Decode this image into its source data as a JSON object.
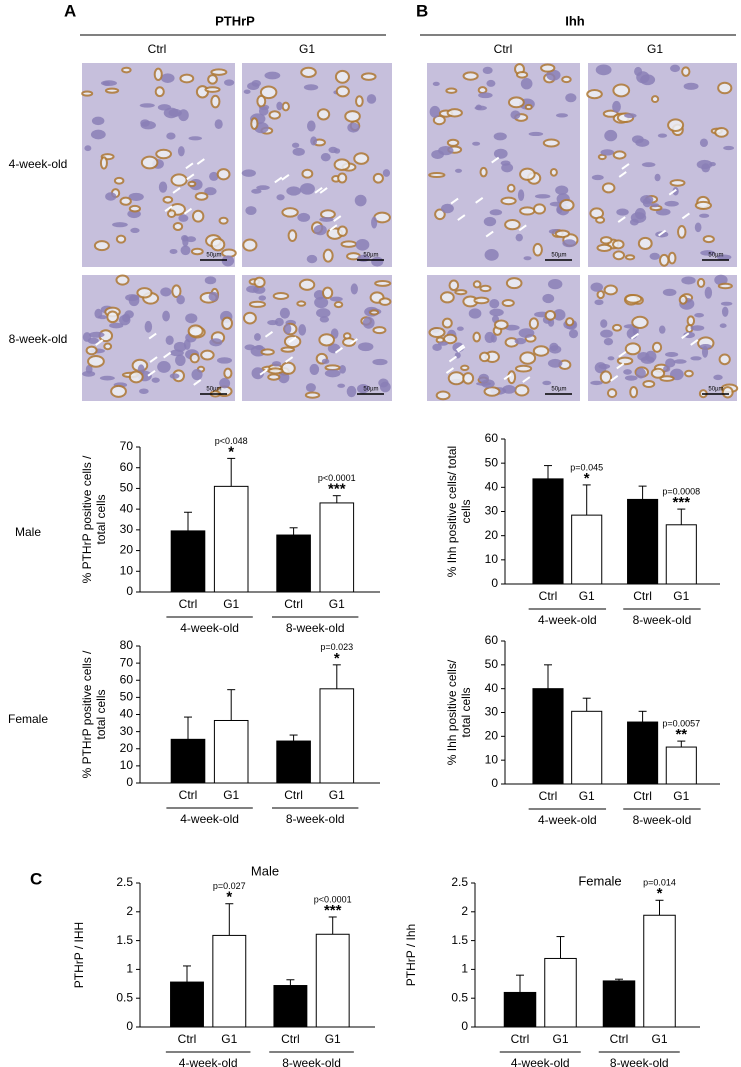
{
  "panel_labels": [
    "A",
    "B",
    "C"
  ],
  "panel_titles": [
    "PTHrP",
    "Ihh"
  ],
  "column_labels": [
    "Ctrl",
    "G1",
    "Ctrl",
    "G1"
  ],
  "row_labels": [
    "4-week-old",
    "8-week-old"
  ],
  "scale_bar": "50µm",
  "sex_labels": [
    "Male",
    "Female"
  ],
  "chart_data": [
    {
      "type": "bar",
      "ylabel": [
        "% PTHrP positive cells /",
        "total cells"
      ],
      "groups": [
        "4-week-old",
        "8-week-old"
      ],
      "categories": [
        "Ctrl",
        "G1",
        "Ctrl",
        "G1"
      ],
      "values": [
        29.5,
        51,
        27.5,
        43
      ],
      "errors": [
        9,
        13.5,
        3.5,
        3.5
      ],
      "colors": [
        "#000000",
        "#ffffff",
        "#000000",
        "#ffffff"
      ],
      "p_labels": [
        null,
        "p<0.048",
        null,
        "p<0.0001"
      ],
      "stars": [
        null,
        "*",
        null,
        "***"
      ],
      "ylim": [
        0,
        70
      ],
      "yticks": [
        0,
        10,
        20,
        30,
        40,
        50,
        60,
        70
      ]
    },
    {
      "type": "bar",
      "ylabel": [
        "% Ihh positive cells/ total",
        "cells"
      ],
      "groups": [
        "4-week-old",
        "8-week-old"
      ],
      "categories": [
        "Ctrl",
        "G1",
        "Ctrl",
        "G1"
      ],
      "values": [
        43.5,
        28.5,
        35,
        24.5
      ],
      "errors": [
        5.5,
        12.5,
        5.5,
        6.5
      ],
      "colors": [
        "#000000",
        "#ffffff",
        "#000000",
        "#ffffff"
      ],
      "p_labels": [
        null,
        "p=0.045",
        null,
        "p=0.0008"
      ],
      "stars": [
        null,
        "*",
        null,
        "***"
      ],
      "ylim": [
        0,
        60
      ],
      "yticks": [
        0,
        10,
        20,
        30,
        40,
        50,
        60
      ]
    },
    {
      "type": "bar",
      "ylabel": [
        "% PTHrP positive cells /",
        "total cells"
      ],
      "groups": [
        "4-week-old",
        "8-week-old"
      ],
      "categories": [
        "Ctrl",
        "G1",
        "Ctrl",
        "G1"
      ],
      "values": [
        25.5,
        36.5,
        24.5,
        55
      ],
      "errors": [
        13,
        18,
        3.5,
        14
      ],
      "colors": [
        "#000000",
        "#ffffff",
        "#000000",
        "#ffffff"
      ],
      "p_labels": [
        null,
        null,
        null,
        "p=0.023"
      ],
      "stars": [
        null,
        null,
        null,
        "*"
      ],
      "ylim": [
        0,
        80
      ],
      "yticks": [
        0,
        10,
        20,
        30,
        40,
        50,
        60,
        70,
        80
      ]
    },
    {
      "type": "bar",
      "ylabel": [
        "% Ihh positive cells/",
        "total cells"
      ],
      "groups": [
        "4-week-old",
        "8-week-old"
      ],
      "categories": [
        "Ctrl",
        "G1",
        "Ctrl",
        "G1"
      ],
      "values": [
        40,
        30.5,
        26,
        15.5
      ],
      "errors": [
        10,
        5.5,
        4.5,
        2.5
      ],
      "colors": [
        "#000000",
        "#ffffff",
        "#000000",
        "#ffffff"
      ],
      "p_labels": [
        null,
        null,
        null,
        "p=0.0057"
      ],
      "stars": [
        null,
        null,
        null,
        "**"
      ],
      "ylim": [
        0,
        60
      ],
      "yticks": [
        0,
        10,
        20,
        30,
        40,
        50,
        60
      ]
    },
    {
      "type": "bar",
      "title": "Male",
      "ylabel": [
        "PTHrP / IHH"
      ],
      "groups": [
        "4-week-old",
        "8-week-old"
      ],
      "categories": [
        "Ctrl",
        "G1",
        "Ctrl",
        "G1"
      ],
      "values": [
        0.78,
        1.59,
        0.72,
        1.61
      ],
      "errors": [
        0.28,
        0.55,
        0.1,
        0.3
      ],
      "colors": [
        "#000000",
        "#ffffff",
        "#000000",
        "#ffffff"
      ],
      "p_labels": [
        null,
        "p=0.027",
        null,
        "p<0.0001"
      ],
      "stars": [
        null,
        "*",
        null,
        "***"
      ],
      "ylim": [
        0,
        2.5
      ],
      "yticks": [
        0,
        0.5,
        1,
        1.5,
        2,
        2.5
      ]
    },
    {
      "type": "bar",
      "title": "Female",
      "ylabel": [
        "PTHrP / Ihh"
      ],
      "groups": [
        "4-week-old",
        "8-week-old"
      ],
      "categories": [
        "Ctrl",
        "G1",
        "Ctrl",
        "G1"
      ],
      "values": [
        0.6,
        1.19,
        0.8,
        1.94
      ],
      "errors": [
        0.3,
        0.38,
        0.03,
        0.26
      ],
      "colors": [
        "#000000",
        "#ffffff",
        "#000000",
        "#ffffff"
      ],
      "p_labels": [
        null,
        null,
        null,
        "p=0.014"
      ],
      "stars": [
        null,
        null,
        null,
        "*"
      ],
      "ylim": [
        0,
        2.5
      ],
      "yticks": [
        0,
        0.5,
        1,
        1.5,
        2,
        2.5
      ]
    }
  ]
}
